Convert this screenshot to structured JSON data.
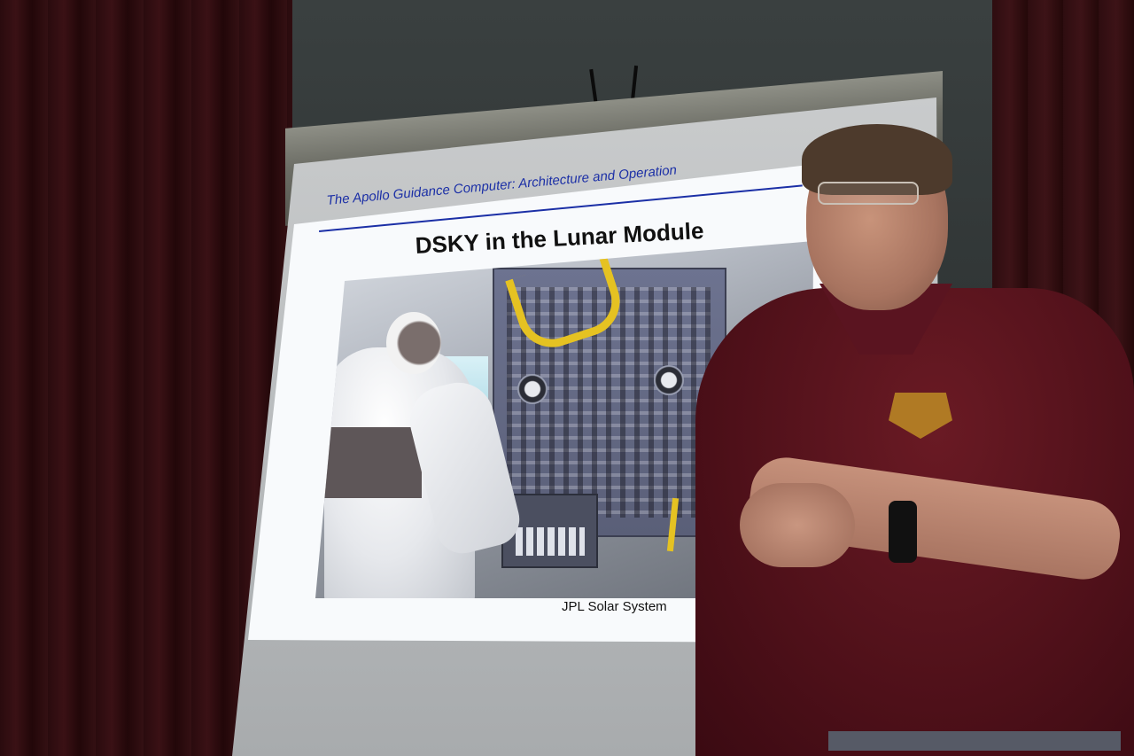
{
  "slide": {
    "header": "The Apollo Guidance Computer: Architecture and Operation",
    "title": "DSKY in the Lunar Module",
    "credit": "JPL Solar System"
  },
  "colors": {
    "curtain": "#3a1115",
    "slide_header_text": "#1b2fa6",
    "shirt": "#5a1420",
    "screen": "#c9cbcc"
  }
}
